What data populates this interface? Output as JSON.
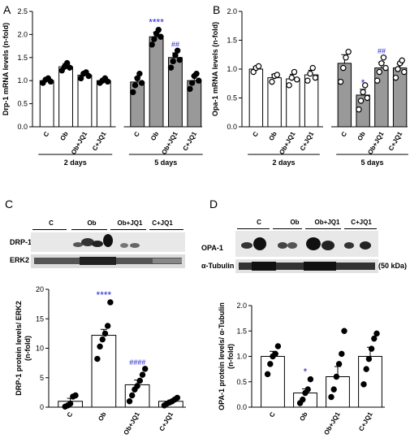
{
  "panels": {
    "a": "A",
    "b": "B",
    "c": "C",
    "d": "D"
  },
  "chart_data": [
    {
      "id": "A",
      "type": "bar",
      "ylabel": "Drp-1 mRNA levels (n-fold)",
      "ylim": [
        0,
        2.5
      ],
      "yticks": [
        "0.0",
        "0.5",
        "1.0",
        "1.5",
        "2.0",
        "2.5"
      ],
      "categories": [
        "C",
        "Ob",
        "Ob+JQ1",
        "C+JQ1",
        "C",
        "Ob",
        "Ob+JQ1",
        "C+JQ1"
      ],
      "groups": [
        "2 days",
        "5 days"
      ],
      "values": [
        1.0,
        1.3,
        1.12,
        1.0,
        0.97,
        1.95,
        1.5,
        1.0
      ],
      "errors": [
        0.05,
        0.07,
        0.06,
        0.05,
        0.1,
        0.1,
        0.1,
        0.1
      ],
      "fills": [
        "#ffffff",
        "#ffffff",
        "#ffffff",
        "#ffffff",
        "#999999",
        "#999999",
        "#999999",
        "#999999"
      ],
      "points": [
        [
          0.95,
          1.02,
          1.05,
          0.98
        ],
        [
          1.22,
          1.3,
          1.38,
          1.28
        ],
        [
          1.05,
          1.15,
          1.18,
          1.1
        ],
        [
          0.95,
          1.0,
          1.05,
          0.98
        ],
        [
          0.75,
          0.9,
          1.05,
          1.15,
          0.95
        ],
        [
          1.78,
          1.9,
          2.02,
          2.1,
          1.95
        ],
        [
          1.28,
          1.42,
          1.55,
          1.65,
          1.45
        ],
        [
          0.82,
          0.95,
          1.1,
          1.15,
          1.0
        ]
      ],
      "annotations": [
        {
          "index": 5,
          "text": "****"
        },
        {
          "index": 6,
          "text": "##"
        }
      ]
    },
    {
      "id": "B",
      "type": "bar",
      "ylabel": "Opa-1 mRNA levels (n-fold)",
      "ylim": [
        0,
        2.0
      ],
      "yticks": [
        "0.0",
        "0.5",
        "1.0",
        "1.5",
        "2.0"
      ],
      "categories": [
        "C",
        "Ob",
        "Ob+JQ1",
        "C+JQ1",
        "C",
        "Ob",
        "Ob+JQ1",
        "C+JQ1"
      ],
      "groups": [
        "2 days",
        "5 days"
      ],
      "values": [
        1.0,
        0.85,
        0.83,
        0.9,
        1.1,
        0.55,
        1.02,
        1.02
      ],
      "errors": [
        0.04,
        0.06,
        0.08,
        0.08,
        0.15,
        0.1,
        0.1,
        0.07
      ],
      "fills": [
        "#ffffff",
        "#ffffff",
        "#ffffff",
        "#ffffff",
        "#999999",
        "#999999",
        "#999999",
        "#999999"
      ],
      "points": [
        [
          0.95,
          1.02,
          1.05
        ],
        [
          0.78,
          0.88,
          0.9
        ],
        [
          0.72,
          0.85,
          0.95,
          0.82
        ],
        [
          0.8,
          0.92,
          1.02,
          0.85
        ],
        [
          0.78,
          1.02,
          1.2,
          1.3
        ],
        [
          0.3,
          0.45,
          0.6,
          0.72,
          0.5
        ],
        [
          0.8,
          0.95,
          1.1,
          1.2,
          1.02
        ],
        [
          0.85,
          1.0,
          1.1,
          1.15,
          0.95
        ]
      ],
      "annotations": [
        {
          "index": 5,
          "text": "*"
        },
        {
          "index": 6,
          "text": "##"
        }
      ]
    },
    {
      "id": "C",
      "type": "bar",
      "ylabel": "DRP-1 protein levels/ ERK2 (n-fold)",
      "ylim": [
        0,
        20
      ],
      "yticks": [
        "0",
        "5",
        "10",
        "15",
        "20"
      ],
      "categories": [
        "C",
        "Ob",
        "Ob+JQ1",
        "C+JQ1"
      ],
      "values": [
        1.0,
        12.2,
        3.8,
        1.0
      ],
      "errors": [
        0.5,
        1.0,
        0.8,
        0.2
      ],
      "fills": [
        "#ffffff",
        "#ffffff",
        "#ffffff",
        "#ffffff"
      ],
      "points": [
        [
          0.1,
          0.3,
          0.6,
          1.8,
          2.0
        ],
        [
          8.2,
          10.3,
          11.5,
          12.5,
          13.8,
          17.8
        ],
        [
          1.0,
          2.0,
          3.0,
          3.6,
          4.5,
          5.5,
          6.5
        ],
        [
          0.3,
          0.6,
          0.8,
          1.0,
          1.3,
          1.6
        ]
      ],
      "annotations": [
        {
          "index": 1,
          "text": "****"
        },
        {
          "index": 2,
          "text": "####"
        }
      ]
    },
    {
      "id": "D",
      "type": "bar",
      "ylabel": "OPA-1 protein levels/ α-Tubulin (n-fold)",
      "ylim": [
        0,
        2.0
      ],
      "yticks": [
        "0.0",
        "0.5",
        "1.0",
        "1.5",
        "2.0"
      ],
      "categories": [
        "C",
        "Ob",
        "Ob+JQ1",
        "C+JQ1"
      ],
      "values": [
        1.0,
        0.28,
        0.6,
        1.0
      ],
      "errors": [
        0.1,
        0.08,
        0.2,
        0.18
      ],
      "fills": [
        "#ffffff",
        "#ffffff",
        "#ffffff",
        "#ffffff"
      ],
      "points": [
        [
          0.65,
          0.85,
          1.0,
          1.05,
          1.2
        ],
        [
          0.08,
          0.15,
          0.28,
          0.35,
          0.55
        ],
        [
          0.2,
          0.35,
          0.6,
          0.85,
          1.05,
          1.5
        ],
        [
          0.45,
          0.75,
          0.95,
          1.15,
          1.35,
          1.45
        ]
      ],
      "annotations": [
        {
          "index": 1,
          "text": "*"
        }
      ]
    }
  ],
  "blots": {
    "c": {
      "lanes": [
        "C",
        "Ob",
        "Ob+JQ1",
        "C+JQ1"
      ],
      "bands": [
        "DRP-1",
        "ERK2"
      ]
    },
    "d": {
      "lanes": [
        "C",
        "Ob",
        "Ob+JQ1",
        "C+JQ1"
      ],
      "bands": [
        "OPA-1",
        "α-Tubulin"
      ],
      "size": "(50 kDa)"
    }
  },
  "colors": {
    "stat": "#1f1fcf",
    "grey_bar": "#999999",
    "white_bar": "#ffffff"
  }
}
